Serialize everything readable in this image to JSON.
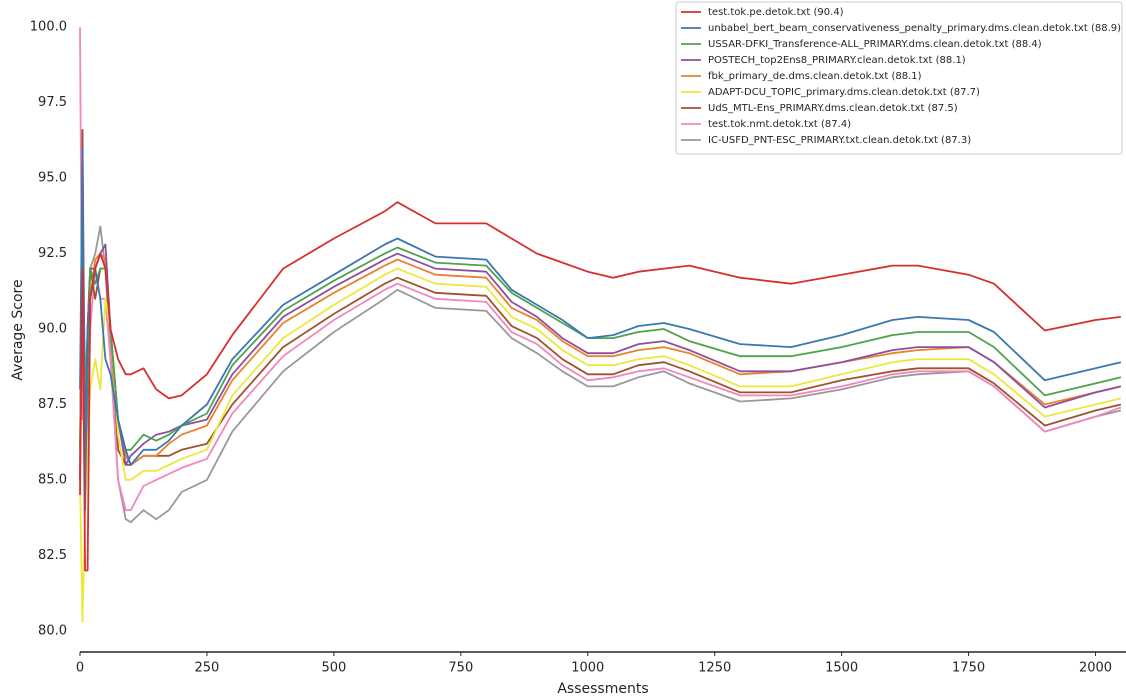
{
  "chart_data": {
    "type": "line",
    "x_label": "Assessments",
    "y_label": "Average Score",
    "xlim": [
      0,
      2060
    ],
    "ylim": [
      79.3,
      100.9
    ],
    "xticks": [
      0,
      250,
      500,
      750,
      1000,
      1250,
      1500,
      1750,
      2000
    ],
    "yticks": [
      {
        "value": 80,
        "label": "80.0"
      },
      82.5,
      {
        "value": 85,
        "label": "85.0"
      },
      87.5,
      {
        "value": 90,
        "label": "90.0"
      },
      92.5,
      {
        "value": 95,
        "label": "95.0"
      },
      97.5,
      {
        "value": 100,
        "label": "100.0"
      }
    ],
    "grid": false,
    "legend": "upper right",
    "x": [
      0,
      5,
      10,
      15,
      20,
      30,
      40,
      50,
      60,
      75,
      90,
      100,
      125,
      150,
      175,
      200,
      250,
      300,
      400,
      500,
      600,
      625,
      700,
      800,
      850,
      900,
      950,
      1000,
      1050,
      1100,
      1150,
      1200,
      1300,
      1400,
      1500,
      1600,
      1650,
      1750,
      1800,
      1900,
      2000,
      2050
    ],
    "series": [
      {
        "name": "test.tok.pe.detok.txt (90.4)",
        "color": "#d62f2f",
        "values": [
          84.5,
          92,
          82,
          82,
          91,
          92,
          92.5,
          92,
          90,
          89,
          88.5,
          88.5,
          88.7,
          88,
          87.7,
          87.8,
          88.5,
          89.8,
          92,
          93,
          93.9,
          94.2,
          93.5,
          93.5,
          93,
          92.5,
          92.2,
          91.9,
          91.7,
          91.9,
          92,
          92.1,
          91.7,
          91.5,
          91.8,
          92.1,
          92.1,
          91.8,
          91.5,
          89.95,
          90.3,
          90.4
        ]
      },
      {
        "name": "unbabel_bert_beam_conservativeness_penalty_primary.dms.clean.detok.txt (88.9)",
        "color": "#3a78b0",
        "values": [
          88,
          96,
          84,
          90,
          91,
          92,
          91,
          89,
          88.5,
          87,
          86,
          85.5,
          86,
          86,
          86.3,
          86.8,
          87.5,
          89,
          90.8,
          91.8,
          92.8,
          93.0,
          92.4,
          92.3,
          91.3,
          90.8,
          90.3,
          89.7,
          89.8,
          90.1,
          90.2,
          90,
          89.5,
          89.4,
          89.8,
          90.3,
          90.4,
          90.3,
          89.9,
          88.3,
          88.7,
          88.9
        ]
      },
      {
        "name": "USSAR-DFKI_Transference-ALL_PRIMARY.dms.clean.detok.txt (88.4)",
        "color": "#4da34b",
        "values": [
          86,
          93,
          85,
          88,
          92,
          91.5,
          92,
          92,
          90,
          87,
          86,
          86,
          86.5,
          86.3,
          86.5,
          86.8,
          87.2,
          88.8,
          90.6,
          91.6,
          92.5,
          92.7,
          92.2,
          92.1,
          91.2,
          90.7,
          90.2,
          89.7,
          89.7,
          89.9,
          90,
          89.6,
          89.1,
          89.1,
          89.4,
          89.8,
          89.9,
          89.9,
          89.4,
          87.8,
          88.2,
          88.4
        ]
      },
      {
        "name": "POSTECH_top2Ens8_PRIMARY.clean.detok.txt (88.1)",
        "color": "#8f4f9e",
        "values": [
          85,
          94,
          86,
          90,
          92,
          92,
          92.5,
          92.8,
          90,
          87,
          85.5,
          85.8,
          86.2,
          86.5,
          86.6,
          86.8,
          87,
          88.5,
          90.4,
          91.4,
          92.3,
          92.5,
          92,
          91.9,
          90.9,
          90.4,
          89.7,
          89.2,
          89.2,
          89.5,
          89.6,
          89.3,
          88.6,
          88.6,
          88.9,
          89.3,
          89.4,
          89.4,
          88.9,
          87.4,
          87.9,
          88.1
        ]
      },
      {
        "name": "fbk_primary_de.dms.clean.detok.txt (88.1)",
        "color": "#e8822c",
        "values": [
          86,
          90,
          88,
          89,
          91,
          92.3,
          92.5,
          92.3,
          90,
          87,
          85.8,
          85.5,
          85.8,
          85.8,
          86.2,
          86.5,
          86.8,
          88.3,
          90.2,
          91.2,
          92.1,
          92.3,
          91.8,
          91.7,
          90.7,
          90.3,
          89.6,
          89.1,
          89.1,
          89.3,
          89.4,
          89.2,
          88.5,
          88.6,
          88.9,
          89.2,
          89.3,
          89.4,
          88.9,
          87.5,
          87.9,
          88.1
        ]
      },
      {
        "name": "ADAPT-DCU_TOPIC_primary.dms.clean.detok.txt (87.7)",
        "color": "#ece83c",
        "values": [
          85,
          80.3,
          84,
          86,
          88,
          89,
          88,
          91,
          90,
          86.5,
          85,
          85,
          85.3,
          85.3,
          85.5,
          85.7,
          86,
          87.8,
          89.7,
          90.8,
          91.8,
          92,
          91.5,
          91.4,
          90.4,
          90,
          89.3,
          88.8,
          88.8,
          89,
          89.1,
          88.8,
          88.1,
          88.1,
          88.5,
          88.9,
          89,
          89,
          88.5,
          87.1,
          87.5,
          87.7
        ]
      },
      {
        "name": "UdS_MTL-Ens_PRIMARY.dms.clean.detok.txt (87.5)",
        "color": "#a0522d",
        "values": [
          85,
          96.6,
          86,
          90,
          92,
          91,
          92,
          92,
          90,
          86,
          85.5,
          85.5,
          85.8,
          85.8,
          85.8,
          86,
          86.2,
          87.5,
          89.4,
          90.5,
          91.5,
          91.7,
          91.2,
          91.1,
          90.1,
          89.7,
          89,
          88.5,
          88.5,
          88.8,
          88.9,
          88.6,
          87.9,
          87.9,
          88.3,
          88.6,
          88.7,
          88.7,
          88.2,
          86.8,
          87.3,
          87.5
        ]
      },
      {
        "name": "test.tok.nmt.detok.txt (87.4)",
        "color": "#f286bf",
        "values": [
          100,
          87,
          88,
          86,
          90,
          92,
          91,
          91,
          89,
          85,
          84,
          84,
          84.8,
          85,
          85.2,
          85.4,
          85.7,
          87.2,
          89.1,
          90.3,
          91.3,
          91.5,
          91,
          90.9,
          89.9,
          89.5,
          88.8,
          88.3,
          88.4,
          88.6,
          88.7,
          88.4,
          87.8,
          87.8,
          88.1,
          88.5,
          88.6,
          88.6,
          88.1,
          86.6,
          87.1,
          87.4
        ]
      },
      {
        "name": "IC-USFD_PNT-ESC_PRIMARY.txt.clean.detok.txt (87.3)",
        "color": "#999999",
        "values": [
          86,
          94,
          88,
          90,
          92,
          92.5,
          93.4,
          92,
          89,
          85,
          83.7,
          83.6,
          84,
          83.7,
          84,
          84.6,
          85,
          86.6,
          88.6,
          89.9,
          91,
          91.3,
          90.7,
          90.6,
          89.7,
          89.2,
          88.6,
          88.1,
          88.1,
          88.4,
          88.6,
          88.2,
          87.6,
          87.7,
          88,
          88.4,
          88.5,
          88.6,
          88.1,
          86.6,
          87.1,
          87.3
        ]
      }
    ]
  }
}
